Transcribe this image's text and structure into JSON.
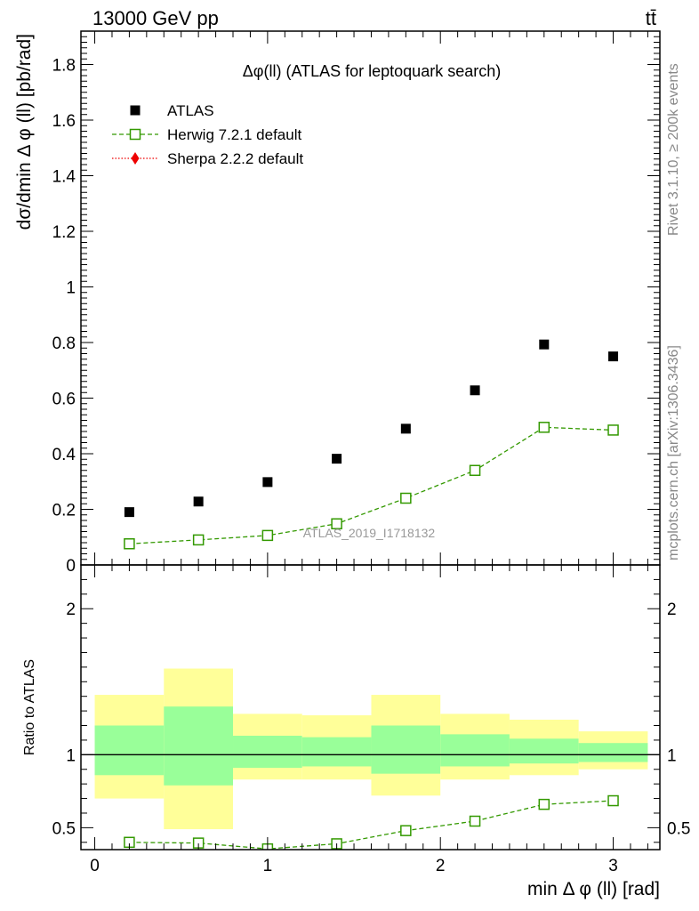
{
  "header": {
    "left": "13000 GeV pp",
    "right": "tt̄"
  },
  "side_labels": {
    "rivet": "Rivet 3.1.10, ≥ 200k events",
    "mcplots": "mcplots.cern.ch [arXiv:1306.3436]"
  },
  "chart_data": [
    {
      "type": "scatter",
      "title": "Δφ(ll) (ATLAS for leptoquark search)",
      "watermark": "ATLAS_2019_I1718132",
      "ylabel": "dσ/dmin Δ φ (ll) [pb/rad]",
      "xlim": [
        -0.08,
        3.27
      ],
      "ylim": [
        0,
        1.92
      ],
      "yticks": [
        "0",
        "0.2",
        "0.4",
        "0.6",
        "0.8",
        "1",
        "1.2",
        "1.4",
        "1.6",
        "1.8"
      ],
      "legend_position": "top-left",
      "series": [
        {
          "name": "ATLAS",
          "color": "#000000",
          "marker": "filled-square",
          "x": [
            0.2,
            0.6,
            1.0,
            1.4,
            1.8,
            2.2,
            2.6,
            3.0
          ],
          "y": [
            0.19,
            0.228,
            0.298,
            0.382,
            0.49,
            0.628,
            0.793,
            0.75
          ]
        },
        {
          "name": "Herwig 7.2.1 default",
          "color": "#339900",
          "marker": "open-square",
          "line": "dashed",
          "x": [
            0.2,
            0.6,
            1.0,
            1.4,
            1.8,
            2.2,
            2.6,
            3.0
          ],
          "y": [
            0.076,
            0.09,
            0.106,
            0.148,
            0.24,
            0.34,
            0.495,
            0.485
          ]
        },
        {
          "name": "Sherpa 2.2.2 default",
          "color": "#ee0000",
          "marker": "filled-diamond",
          "line": "dotted",
          "x": [],
          "y": []
        }
      ]
    },
    {
      "type": "line",
      "ylabel": "Ratio to ATLAS",
      "xlabel": "min Δ φ (ll) [rad]",
      "xlim": [
        -0.08,
        3.27
      ],
      "ylim": [
        0.35,
        2.3
      ],
      "xticks": [
        "0",
        "1",
        "2",
        "3"
      ],
      "yticks": [
        "0.5",
        "1",
        "2"
      ],
      "bins": [
        0,
        0.4,
        0.8,
        1.2,
        1.6,
        2.0,
        2.4,
        2.8,
        3.2
      ],
      "band_outer": {
        "color": "#ffff99",
        "lo": [
          0.7,
          0.49,
          0.83,
          0.83,
          0.72,
          0.83,
          0.86,
          0.9
        ],
        "hi": [
          1.41,
          1.59,
          1.28,
          1.27,
          1.41,
          1.28,
          1.24,
          1.16
        ]
      },
      "band_inner": {
        "color": "#99ff99",
        "lo": [
          0.86,
          0.79,
          0.91,
          0.92,
          0.87,
          0.92,
          0.94,
          0.95
        ],
        "hi": [
          1.2,
          1.33,
          1.13,
          1.12,
          1.2,
          1.14,
          1.11,
          1.08
        ]
      },
      "series": [
        {
          "name": "Herwig 7.2.1 default",
          "color": "#339900",
          "marker": "open-square",
          "line": "dashed",
          "x": [
            0.2,
            0.6,
            1.0,
            1.4,
            1.8,
            2.2,
            2.6,
            3.0
          ],
          "y": [
            0.4,
            0.395,
            0.355,
            0.39,
            0.48,
            0.545,
            0.66,
            0.685
          ]
        }
      ]
    }
  ]
}
